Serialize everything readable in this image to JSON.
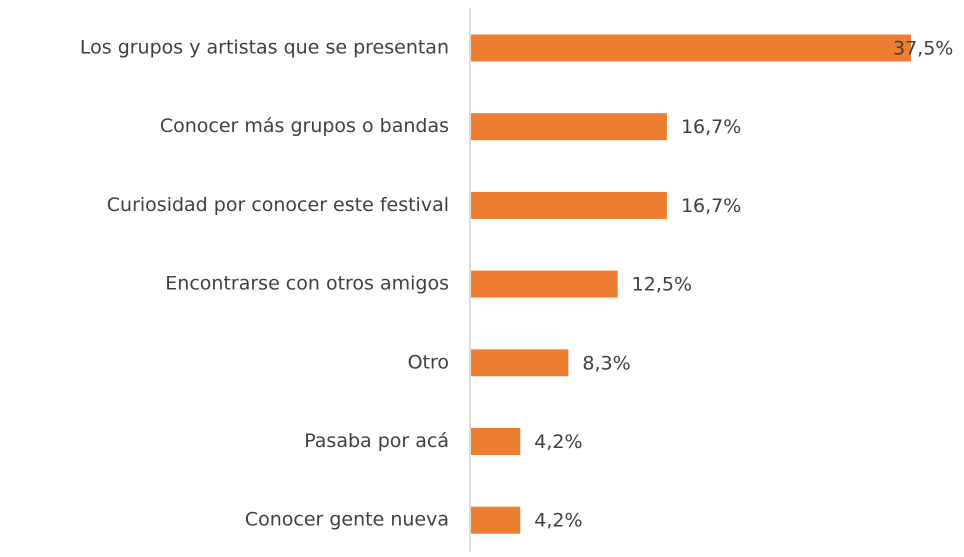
{
  "chart_data": {
    "type": "bar",
    "orientation": "horizontal",
    "categories": [
      "Los grupos y artistas que se presentan",
      "Conocer más grupos o bandas",
      "Curiosidad por conocer este festival",
      "Encontrarse con otros amigos",
      "Otro",
      "Pasaba por acá",
      "Conocer gente nueva"
    ],
    "values": [
      37.5,
      16.7,
      16.7,
      12.5,
      8.3,
      4.2,
      4.2
    ],
    "value_labels": [
      "37,5%",
      "16,7%",
      "16,7%",
      "12,5%",
      "8,3%",
      "4,2%",
      "4,2%"
    ],
    "color": "#ed7d31"
  }
}
